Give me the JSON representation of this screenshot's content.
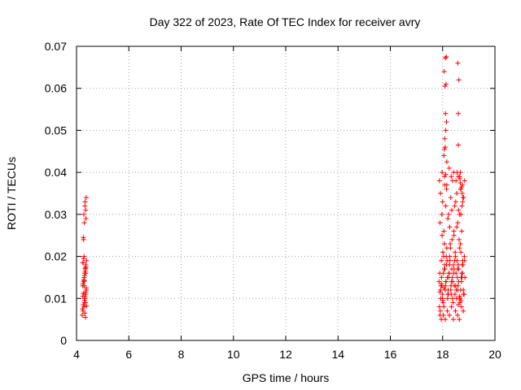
{
  "chart_data": {
    "type": "scatter",
    "title": "Day 322 of 2023, Rate Of TEC Index for receiver avry",
    "xlabel": "GPS time / hours",
    "ylabel": "ROTI / TECUs",
    "xlim": [
      4,
      20
    ],
    "ylim": [
      0,
      0.07
    ],
    "xticks": [
      "4",
      "6",
      "8",
      "10",
      "12",
      "14",
      "16",
      "18",
      "20"
    ],
    "yticks": [
      "0",
      "0.01",
      "0.02",
      "0.03",
      "0.04",
      "0.05",
      "0.06",
      "0.07"
    ],
    "grid": true,
    "legend": "none",
    "marker": "plus",
    "color": "#ff0000",
    "series": [
      {
        "x": [
          4.22,
          4.25,
          4.28,
          4.3,
          4.33,
          4.35,
          4.37,
          4.24,
          4.27,
          4.29,
          4.31,
          4.34,
          4.36,
          4.38,
          4.23,
          4.26,
          4.3,
          4.32,
          4.35,
          4.37,
          4.25,
          4.28,
          4.31,
          4.33,
          4.36,
          4.24,
          4.27,
          4.29,
          4.32,
          4.34,
          4.38,
          4.26,
          4.3,
          4.33,
          4.35,
          4.25,
          4.29,
          4.31,
          4.34,
          4.37,
          4.27,
          4.3,
          4.36,
          4.35,
          4.28,
          4.32,
          4.37,
          4.33,
          4.26,
          4.24
        ],
        "y": [
          0.006,
          0.007,
          0.008,
          0.009,
          0.01,
          0.011,
          0.012,
          0.013,
          0.014,
          0.015,
          0.016,
          0.017,
          0.018,
          0.019,
          0.0075,
          0.0085,
          0.0095,
          0.0105,
          0.0115,
          0.0125,
          0.0135,
          0.0145,
          0.0155,
          0.0165,
          0.0175,
          0.0185,
          0.0195,
          0.02,
          0.0065,
          0.0055,
          0.0082,
          0.0112,
          0.0142,
          0.0172,
          0.016,
          0.0185,
          0.013,
          0.01,
          0.009,
          0.012,
          0.024,
          0.028,
          0.029,
          0.031,
          0.03,
          0.032,
          0.034,
          0.033,
          0.0245,
          0.0105
        ]
      },
      {
        "x": [
          17.88,
          17.92,
          17.96,
          18.0,
          18.04,
          18.08,
          18.12,
          18.16,
          18.2,
          18.24,
          18.28,
          18.32,
          18.36,
          18.4,
          18.44,
          18.48,
          18.52,
          18.56,
          18.6,
          18.64,
          18.68,
          18.72,
          18.76,
          18.8,
          18.84,
          17.9,
          17.94,
          17.98,
          18.02,
          18.06,
          18.1,
          18.14,
          18.18,
          18.22,
          18.26,
          18.3,
          18.34,
          18.38,
          18.42,
          18.46,
          18.5,
          18.54,
          18.58,
          18.62,
          18.66,
          18.7,
          18.74,
          18.78,
          18.82,
          17.86,
          17.91,
          17.95,
          17.99,
          18.03,
          18.07,
          18.11,
          18.15,
          18.19,
          18.23,
          18.27,
          18.31,
          18.35,
          18.39,
          18.43,
          18.47,
          18.51,
          18.55,
          18.59,
          18.63,
          18.67,
          18.71,
          18.75,
          18.79,
          18.83,
          17.89,
          17.93,
          17.97,
          18.01,
          18.05,
          18.09,
          18.13,
          18.17,
          18.21,
          18.25,
          18.29,
          18.33,
          18.37,
          18.41,
          18.45,
          18.49,
          18.53,
          18.57,
          18.61,
          18.65,
          18.69,
          18.73,
          18.77,
          18.81,
          18.85,
          17.9,
          17.97,
          18.05,
          18.12,
          18.2,
          18.27,
          18.35,
          18.43,
          18.5,
          18.58,
          18.65,
          18.73,
          18.8,
          17.92,
          18.0,
          18.08,
          18.15,
          18.23,
          18.31,
          18.38,
          18.46,
          18.54,
          18.61,
          18.69,
          18.77,
          17.95,
          18.03,
          18.1,
          18.18,
          18.26,
          18.34,
          18.41,
          18.49,
          18.57,
          18.64,
          18.72,
          18.79,
          17.88,
          17.98,
          18.07,
          18.16,
          18.25,
          18.33,
          18.42,
          18.51,
          18.6,
          18.68,
          18.76,
          18.84,
          18.05,
          18.1,
          18.08,
          18.12,
          18.15,
          18.11,
          18.09,
          18.13,
          18.06,
          18.14,
          18.1,
          18.07,
          18.16,
          18.12,
          18.6,
          18.62,
          18.58,
          18.6,
          18.55,
          18.65,
          18.7,
          18.75,
          18.68,
          18.72,
          18.78,
          18.66,
          18.74,
          18.7,
          17.9,
          17.95,
          18.0,
          18.05,
          18.6,
          18.65,
          18.7
        ],
        "y": [
          0.008,
          0.012,
          0.015,
          0.01,
          0.02,
          0.018,
          0.014,
          0.022,
          0.011,
          0.016,
          0.019,
          0.013,
          0.024,
          0.009,
          0.017,
          0.021,
          0.012,
          0.015,
          0.018,
          0.01,
          0.023,
          0.014,
          0.016,
          0.011,
          0.019,
          0.006,
          0.013,
          0.025,
          0.009,
          0.017,
          0.012,
          0.02,
          0.015,
          0.011,
          0.018,
          0.022,
          0.014,
          0.01,
          0.016,
          0.019,
          0.013,
          0.027,
          0.012,
          0.017,
          0.009,
          0.021,
          0.015,
          0.018,
          0.011,
          0.014,
          0.007,
          0.019,
          0.011,
          0.016,
          0.023,
          0.013,
          0.018,
          0.01,
          0.015,
          0.02,
          0.012,
          0.017,
          0.014,
          0.026,
          0.011,
          0.016,
          0.019,
          0.013,
          0.024,
          0.01,
          0.015,
          0.018,
          0.012,
          0.02,
          0.016,
          0.01,
          0.013,
          0.021,
          0.008,
          0.017,
          0.014,
          0.019,
          0.012,
          0.016,
          0.023,
          0.011,
          0.015,
          0.018,
          0.013,
          0.02,
          0.01,
          0.017,
          0.014,
          0.022,
          0.012,
          0.016,
          0.019,
          0.011,
          0.015,
          0.028,
          0.03,
          0.026,
          0.032,
          0.029,
          0.027,
          0.031,
          0.025,
          0.033,
          0.028,
          0.03,
          0.026,
          0.034,
          0.035,
          0.033,
          0.037,
          0.036,
          0.03,
          0.034,
          0.038,
          0.032,
          0.035,
          0.031,
          0.036,
          0.033,
          0.005,
          0.006,
          0.005,
          0.007,
          0.006,
          0.008,
          0.005,
          0.007,
          0.006,
          0.005,
          0.008,
          0.007,
          0.038,
          0.04,
          0.039,
          0.037,
          0.041,
          0.039,
          0.04,
          0.038,
          0.039,
          0.04,
          0.037,
          0.038,
          0.044,
          0.046,
          0.048,
          0.05,
          0.052,
          0.054,
          0.0605,
          0.061,
          0.064,
          0.0675,
          0.0672,
          0.0455,
          0.0425,
          0.0395,
          0.054,
          0.062,
          0.066,
          0.0465,
          0.04,
          0.039,
          0.036,
          0.035,
          0.0375,
          0.0365,
          0.034,
          0.0385,
          0.032,
          0.03,
          0.0115,
          0.0135,
          0.0095,
          0.0125,
          0.0085,
          0.0105,
          0.0095
        ]
      }
    ]
  }
}
